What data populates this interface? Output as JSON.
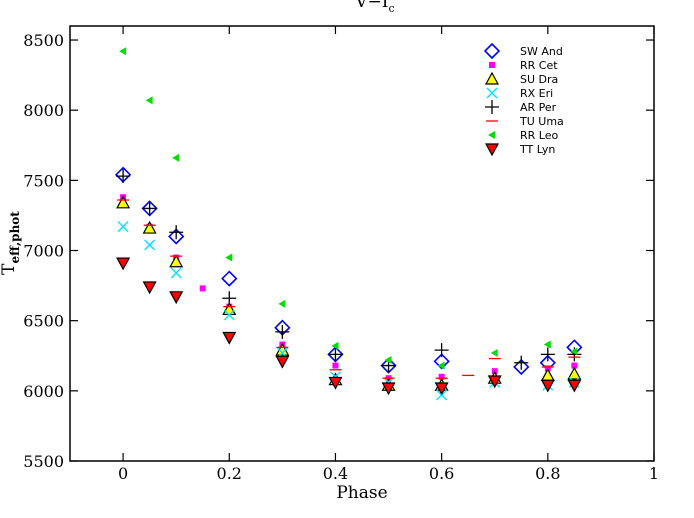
{
  "chart_data": {
    "type": "scatter",
    "title": "V−I",
    "title_sub": "c",
    "xlabel": "Phase",
    "ylabel_main": "T",
    "ylabel_sub": "eff,phot",
    "xlim": [
      -0.1,
      1.0
    ],
    "ylim": [
      5500,
      8600
    ],
    "x_ticks": [
      "0",
      "0.2",
      "0.4",
      "0.6",
      "0.8",
      "1"
    ],
    "y_ticks": [
      "5500",
      "6000",
      "6500",
      "7000",
      "7500",
      "8000",
      "8500"
    ],
    "grid": false,
    "legend_position": "top-right",
    "series": [
      {
        "name": "SW And",
        "marker": "diamond",
        "color": "#0000ff",
        "points": [
          [
            0,
            7540
          ],
          [
            0.05,
            7300
          ],
          [
            0.1,
            7100
          ],
          [
            0.2,
            6800
          ],
          [
            0.3,
            6450
          ],
          [
            0.4,
            6260
          ],
          [
            0.5,
            6180
          ],
          [
            0.6,
            6210
          ],
          [
            0.75,
            6170
          ],
          [
            0.8,
            6200
          ],
          [
            0.85,
            6310
          ]
        ]
      },
      {
        "name": "RR Cet",
        "marker": "square",
        "color": "#ff00ff",
        "points": [
          [
            0,
            7380
          ],
          [
            0.05,
            7170
          ],
          [
            0.1,
            6950
          ],
          [
            0.15,
            6730
          ],
          [
            0.2,
            6600
          ],
          [
            0.3,
            6330
          ],
          [
            0.4,
            6180
          ],
          [
            0.5,
            6090
          ],
          [
            0.6,
            6100
          ],
          [
            0.7,
            6140
          ],
          [
            0.8,
            6160
          ],
          [
            0.85,
            6180
          ]
        ]
      },
      {
        "name": "SU Dra",
        "marker": "triangle-up",
        "color": "#ffff00",
        "points": [
          [
            0,
            7340
          ],
          [
            0.05,
            7160
          ],
          [
            0.1,
            6920
          ],
          [
            0.2,
            6580
          ],
          [
            0.3,
            6290
          ],
          [
            0.4,
            6080
          ],
          [
            0.5,
            6040
          ],
          [
            0.6,
            6040
          ],
          [
            0.7,
            6090
          ],
          [
            0.8,
            6110
          ],
          [
            0.85,
            6120
          ]
        ]
      },
      {
        "name": "RX Eri",
        "marker": "x",
        "color": "#00e5ff",
        "points": [
          [
            0,
            7170
          ],
          [
            0.05,
            7040
          ],
          [
            0.1,
            6840
          ],
          [
            0.2,
            6540
          ],
          [
            0.3,
            6270
          ],
          [
            0.4,
            6100
          ],
          [
            0.5,
            6060
          ],
          [
            0.6,
            5970
          ],
          [
            0.7,
            6060
          ],
          [
            0.8,
            6040
          ],
          [
            0.85,
            6060
          ]
        ]
      },
      {
        "name": "AR Per",
        "marker": "plus",
        "color": "#000000",
        "points": [
          [
            0,
            7530
          ],
          [
            0.05,
            7300
          ],
          [
            0.1,
            7130
          ],
          [
            0.2,
            6660
          ],
          [
            0.3,
            6420
          ],
          [
            0.4,
            6260
          ],
          [
            0.5,
            6180
          ],
          [
            0.6,
            6290
          ],
          [
            0.75,
            6200
          ],
          [
            0.8,
            6260
          ],
          [
            0.85,
            6260
          ]
        ]
      },
      {
        "name": "TU Uma",
        "marker": "dash",
        "color": "#ff0000",
        "points": [
          [
            0,
            7360
          ],
          [
            0.05,
            7180
          ],
          [
            0.1,
            6960
          ],
          [
            0.2,
            6600
          ],
          [
            0.3,
            6310
          ],
          [
            0.4,
            6150
          ],
          [
            0.5,
            6090
          ],
          [
            0.6,
            6090
          ],
          [
            0.65,
            6110
          ],
          [
            0.7,
            6230
          ],
          [
            0.8,
            6170
          ],
          [
            0.85,
            6240
          ]
        ]
      },
      {
        "name": "RR Leo",
        "marker": "triangle-left",
        "color": "#00dd00",
        "points": [
          [
            0,
            8420
          ],
          [
            0.05,
            8070
          ],
          [
            0.1,
            7660
          ],
          [
            0.2,
            6950
          ],
          [
            0.3,
            6620
          ],
          [
            0.4,
            6320
          ],
          [
            0.5,
            6220
          ],
          [
            0.6,
            6180
          ],
          [
            0.7,
            6270
          ],
          [
            0.8,
            6330
          ],
          [
            0.85,
            6280
          ]
        ]
      },
      {
        "name": "TT Lyn",
        "marker": "triangle-down",
        "color": "#ff0000",
        "points": [
          [
            0,
            6910
          ],
          [
            0.05,
            6740
          ],
          [
            0.1,
            6670
          ],
          [
            0.2,
            6380
          ],
          [
            0.3,
            6210
          ],
          [
            0.4,
            6060
          ],
          [
            0.5,
            6020
          ],
          [
            0.6,
            6020
          ],
          [
            0.7,
            6070
          ],
          [
            0.8,
            6040
          ],
          [
            0.85,
            6040
          ]
        ]
      }
    ]
  }
}
